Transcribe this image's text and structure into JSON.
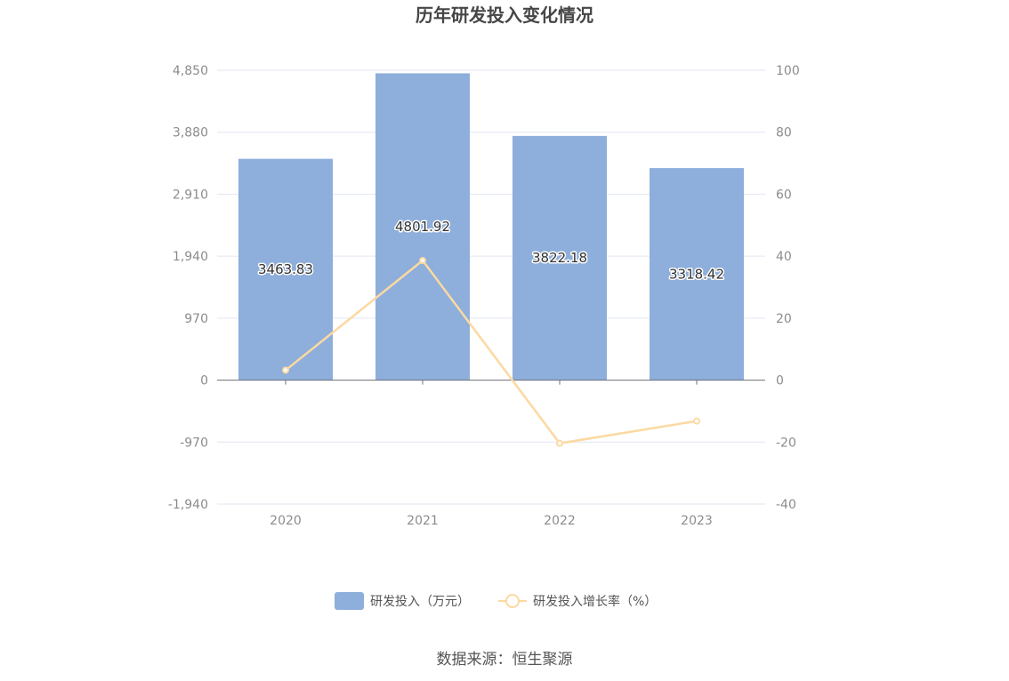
{
  "chart_data": {
    "type": "bar",
    "title": "历年研发投入变化情况",
    "categories": [
      "2020",
      "2021",
      "2022",
      "2023"
    ],
    "series": [
      {
        "name": "研发投入（万元）",
        "type": "bar",
        "axis": "left",
        "color": "#8eaedb",
        "values": [
          3463.83,
          4801.92,
          3822.18,
          3318.42
        ],
        "labels": [
          "3463.83",
          "4801.92",
          "3822.18",
          "3318.42"
        ]
      },
      {
        "name": "研发投入增长率（%）",
        "type": "line",
        "axis": "right",
        "color": "#fcd9a1",
        "values": [
          3.2,
          38.6,
          -20.4,
          -13.2
        ]
      }
    ],
    "y_left": {
      "ylim": [
        -1940,
        4850
      ],
      "ticks": [
        4850,
        3880,
        2910,
        1940,
        970,
        0,
        -970,
        -1940
      ],
      "tick_labels": [
        "4,850",
        "3,880",
        "2,910",
        "1,940",
        "970",
        "0",
        "-970",
        "-1,940"
      ]
    },
    "y_right": {
      "ylim": [
        -40,
        100
      ],
      "ticks": [
        100,
        80,
        60,
        40,
        20,
        0,
        -20,
        -40
      ],
      "tick_labels": [
        "100",
        "80",
        "60",
        "40",
        "20",
        "0",
        "-20",
        "-40"
      ]
    },
    "grid": true,
    "legend": "bottom-center"
  },
  "source": "数据来源：恒生聚源"
}
